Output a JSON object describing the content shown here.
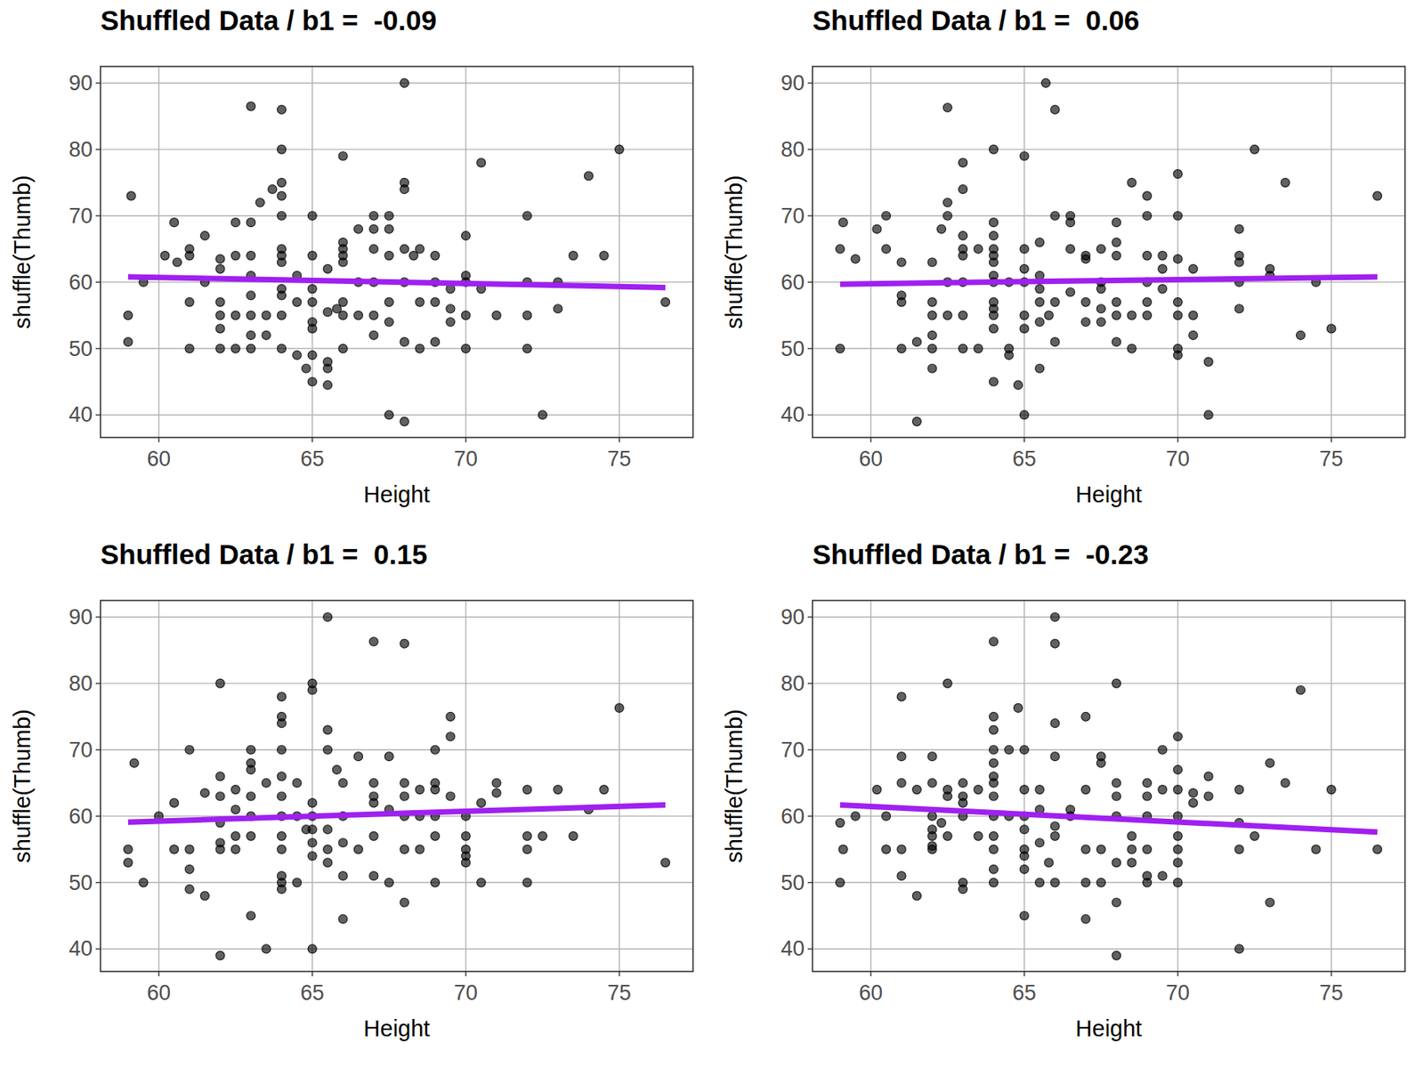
{
  "chart_data": [
    {
      "type": "scatter",
      "title": "Shuffled Data / b1 =  -0.09",
      "x_label": "Height",
      "y_label": "shuffle(Thumb)",
      "xlim": [
        58.1,
        77.4
      ],
      "ylim": [
        36.6,
        92.5
      ],
      "xticks": [
        60,
        65,
        70,
        75
      ],
      "yticks": [
        40,
        50,
        60,
        70,
        80,
        90
      ],
      "grid": true,
      "series": [
        {
          "type": "scatter",
          "marker": "circle",
          "color": "#000000",
          "x": [
            59,
            59,
            59.1,
            59.5,
            60.2,
            60.5,
            60.6,
            61,
            61,
            61,
            61,
            61.5,
            61.5,
            62,
            62,
            62,
            62,
            62,
            62,
            62.5,
            62.5,
            62.5,
            62.5,
            63,
            63,
            63,
            63,
            63,
            63,
            63,
            63,
            63.3,
            63.5,
            63.5,
            63.7,
            64,
            64,
            64,
            64,
            64,
            64,
            64,
            64,
            64,
            64,
            64,
            64,
            64.5,
            64.5,
            64.5,
            64.8,
            65,
            65,
            65,
            65,
            65,
            65,
            65,
            65,
            65.5,
            65.5,
            65.5,
            65.5,
            65.5,
            65.8,
            66,
            66,
            66,
            66,
            66,
            66,
            66,
            66,
            66.5,
            66.5,
            66.5,
            67,
            67,
            67,
            67,
            67,
            67,
            67.5,
            67.5,
            67.5,
            67.5,
            67.5,
            67.5,
            68,
            68,
            68,
            68,
            68,
            68,
            68,
            68.3,
            68.5,
            68.5,
            68.5,
            69,
            69,
            69,
            69,
            69.5,
            69.5,
            69.5,
            70,
            70,
            70,
            70,
            70,
            70.5,
            70.5,
            71,
            72,
            72,
            72,
            72,
            72.5,
            73,
            73,
            73.5,
            74,
            74.5,
            75,
            76.5
          ],
          "values": [
            55,
            51,
            73,
            60,
            64,
            69,
            63,
            65,
            64,
            57,
            50,
            67,
            60,
            63.5,
            62,
            57,
            55,
            53,
            50,
            69,
            64,
            55,
            50,
            86.5,
            69,
            64,
            61,
            58,
            55,
            52,
            50,
            72,
            55,
            52,
            74,
            86,
            80,
            75,
            73,
            70,
            65,
            64,
            63,
            59,
            58,
            55,
            50,
            61,
            57,
            49,
            47,
            70,
            64,
            59,
            57,
            54,
            53,
            49,
            45,
            62,
            55.5,
            48,
            47,
            44.5,
            56,
            79,
            66,
            65,
            64,
            63,
            57,
            55,
            50,
            68,
            60,
            55,
            70,
            68,
            65,
            60,
            55,
            52,
            70,
            68,
            64,
            57,
            54,
            40,
            90,
            75,
            74,
            65,
            60,
            51,
            39,
            64,
            65,
            57,
            50,
            64,
            60,
            57,
            51,
            59,
            56,
            54,
            67,
            61,
            60,
            55,
            50,
            78,
            59,
            55,
            70,
            60,
            55,
            50,
            40,
            60,
            56,
            64,
            76,
            64,
            80,
            57
          ]
        },
        {
          "type": "line",
          "line_style": "solid",
          "color": "#a020f0",
          "x": [
            59,
            76.5
          ],
          "values": [
            60.8,
            59.2
          ]
        }
      ]
    },
    {
      "type": "scatter",
      "title": "Shuffled Data / b1 =  0.06",
      "x_label": "Height",
      "y_label": "shuffle(Thumb)",
      "xlim": [
        58.1,
        77.4
      ],
      "ylim": [
        36.6,
        92.5
      ],
      "xticks": [
        60,
        65,
        70,
        75
      ],
      "yticks": [
        40,
        50,
        60,
        70,
        80,
        90
      ],
      "grid": true,
      "series": [
        {
          "type": "scatter",
          "marker": "circle",
          "color": "#000000",
          "x": [
            59,
            59,
            59.1,
            59.5,
            60.2,
            60.5,
            60.5,
            61,
            61,
            61,
            61,
            61.5,
            61.5,
            62,
            62,
            62,
            62,
            62,
            62,
            62.3,
            62.5,
            62.5,
            62.5,
            62.5,
            62.5,
            63,
            63,
            63,
            63,
            63,
            63,
            63,
            63,
            63.5,
            63.5,
            64,
            64,
            64,
            64,
            64,
            64,
            64,
            64,
            64,
            64,
            64,
            64,
            64,
            64.5,
            64.5,
            64.5,
            64.8,
            65,
            65,
            65,
            65,
            65,
            65,
            65,
            65.5,
            65.5,
            65.5,
            65.5,
            65.5,
            65.5,
            65.7,
            65.8,
            66,
            66,
            66,
            66,
            66.5,
            66.5,
            66.5,
            66.5,
            67,
            67,
            67,
            67,
            67.5,
            67.5,
            67.5,
            67.5,
            67.5,
            68,
            68,
            68,
            68,
            68,
            68,
            68.5,
            68.5,
            68.5,
            69,
            69,
            69,
            69,
            69,
            69,
            69.5,
            69.5,
            69.5,
            70,
            70,
            70,
            70,
            70,
            70,
            70,
            70.5,
            70.5,
            70.5,
            71,
            71,
            72,
            72,
            72,
            72,
            72,
            72.5,
            73,
            73,
            73.5,
            74,
            74.5,
            75,
            76.5
          ],
          "values": [
            65,
            50,
            69,
            63.5,
            68,
            70,
            65,
            63,
            58,
            57,
            50,
            51,
            39,
            63,
            57,
            55,
            52,
            50,
            47,
            68,
            86.3,
            72,
            70,
            60,
            55,
            78,
            74,
            67,
            65,
            64,
            60,
            55,
            50,
            65,
            50,
            80,
            69,
            67,
            65,
            64,
            63,
            61,
            60,
            57,
            56,
            55,
            53,
            45,
            60,
            50,
            49,
            44.5,
            79,
            65,
            62,
            60,
            55,
            53,
            40,
            66,
            61,
            59,
            57,
            54,
            47,
            90,
            55,
            86,
            70,
            57,
            51,
            70,
            69,
            65,
            58.5,
            64,
            63.5,
            57,
            54,
            65,
            60,
            59,
            56,
            54,
            69,
            66,
            64,
            57,
            55,
            51,
            75,
            55,
            50,
            73,
            70,
            64,
            60,
            57,
            55,
            64,
            62,
            59,
            76.3,
            70,
            63.5,
            57,
            55,
            50,
            49,
            62,
            55,
            52,
            48,
            40,
            68,
            64,
            63,
            60,
            56,
            80,
            62,
            61,
            75,
            52,
            60,
            53,
            73
          ]
        },
        {
          "type": "line",
          "line_style": "solid",
          "color": "#a020f0",
          "x": [
            59,
            76.5
          ],
          "values": [
            59.7,
            60.8
          ]
        }
      ]
    },
    {
      "type": "scatter",
      "title": "Shuffled Data / b1 =  0.15",
      "x_label": "Height",
      "y_label": "shuffle(Thumb)",
      "xlim": [
        58.1,
        77.4
      ],
      "ylim": [
        36.6,
        92.5
      ],
      "xticks": [
        60,
        65,
        70,
        75
      ],
      "yticks": [
        40,
        50,
        60,
        70,
        80,
        90
      ],
      "grid": true,
      "series": [
        {
          "type": "scatter",
          "marker": "circle",
          "color": "#000000",
          "x": [
            59,
            59,
            59.2,
            59.5,
            60,
            60.5,
            60.5,
            61,
            61,
            61,
            61,
            61.5,
            61.5,
            62,
            62,
            62,
            62,
            62,
            62,
            62,
            62.5,
            62.5,
            62.5,
            62.5,
            63,
            63,
            63,
            63,
            63,
            63,
            63,
            63.5,
            63.5,
            64,
            64,
            64,
            64,
            64,
            64,
            64,
            64,
            64,
            64,
            64,
            64,
            64.5,
            64.5,
            64.5,
            64.8,
            65,
            65,
            65,
            65,
            65,
            65,
            65,
            65,
            65.5,
            65.5,
            65.5,
            65.5,
            65.5,
            65.5,
            65.8,
            66,
            66,
            66,
            66,
            66,
            66.5,
            66.5,
            67,
            67,
            67,
            67,
            67,
            67,
            67.5,
            67.5,
            67.5,
            68,
            68,
            68,
            68,
            68,
            68,
            68.5,
            68.5,
            68.5,
            69,
            69,
            69,
            69,
            69,
            69,
            69.5,
            69.5,
            69.5,
            70,
            70,
            70,
            70,
            70,
            70.5,
            70.5,
            71,
            71,
            72,
            72,
            72,
            72,
            72.5,
            73,
            73.5,
            74,
            74.5,
            75,
            76.5
          ],
          "values": [
            55,
            53,
            68,
            50,
            60,
            62,
            55,
            70,
            55,
            52,
            49,
            48,
            63.5,
            80,
            66,
            63,
            59,
            56,
            55,
            39,
            64,
            61,
            57,
            55,
            70,
            68,
            67,
            63,
            60,
            57,
            45,
            65,
            40,
            78,
            75,
            74,
            70,
            66,
            63,
            60,
            57,
            55,
            51,
            50,
            49,
            65,
            60,
            50,
            58,
            80,
            79,
            62,
            60,
            58,
            56,
            54,
            40,
            90,
            73,
            70,
            58,
            55,
            53,
            67,
            65,
            60,
            56,
            51,
            44.5,
            69,
            55,
            86.3,
            65,
            63,
            62,
            57,
            51,
            69,
            61,
            50,
            86,
            65,
            63,
            60,
            55,
            47,
            64,
            60,
            55,
            70,
            65,
            64,
            60,
            57,
            50,
            75,
            72,
            63,
            60,
            57,
            55,
            54,
            53,
            62,
            50,
            65,
            63.5,
            64,
            57,
            55,
            50,
            57,
            64,
            57,
            61,
            64,
            76.3,
            53
          ]
        },
        {
          "type": "line",
          "line_style": "solid",
          "color": "#a020f0",
          "x": [
            59,
            76.5
          ],
          "values": [
            59.1,
            61.7
          ]
        }
      ]
    },
    {
      "type": "scatter",
      "title": "Shuffled Data / b1 =  -0.23",
      "x_label": "Height",
      "y_label": "shuffle(Thumb)",
      "xlim": [
        58.1,
        77.4
      ],
      "ylim": [
        36.6,
        92.5
      ],
      "xticks": [
        60,
        65,
        70,
        75
      ],
      "yticks": [
        40,
        50,
        60,
        70,
        80,
        90
      ],
      "grid": true,
      "series": [
        {
          "type": "scatter",
          "marker": "circle",
          "color": "#000000",
          "x": [
            59,
            59,
            59.1,
            59.5,
            60.2,
            60.5,
            60.5,
            61,
            61,
            61,
            61,
            61,
            61.5,
            61.5,
            62,
            62,
            62,
            62,
            62,
            62,
            62,
            62.3,
            62.5,
            62.5,
            62.5,
            62.5,
            63,
            63,
            63,
            63,
            63,
            63,
            63.5,
            63.5,
            64,
            64,
            64,
            64,
            64,
            64,
            64,
            64,
            64,
            64,
            64,
            64,
            64,
            64.5,
            64.5,
            64.8,
            65,
            65,
            65,
            65,
            65,
            65,
            65,
            65,
            65.5,
            65.5,
            65.5,
            65.5,
            65.8,
            66,
            66,
            66,
            66,
            66,
            66,
            66,
            66.5,
            66.5,
            67,
            67,
            67,
            67,
            67,
            67.5,
            67.5,
            67.5,
            67.5,
            68,
            68,
            68,
            68,
            68,
            68,
            68,
            68.5,
            68.5,
            68.5,
            69,
            69,
            69,
            69,
            69,
            69,
            69.5,
            69.5,
            69.5,
            70,
            70,
            70,
            70,
            70,
            70,
            70,
            70,
            70.5,
            70.5,
            71,
            71,
            72,
            72,
            72,
            72,
            72.5,
            73,
            73,
            73.5,
            74,
            74.5,
            75,
            76.5
          ],
          "values": [
            59,
            50,
            55,
            60,
            64,
            60,
            55,
            78,
            69,
            65,
            55,
            51,
            48,
            64,
            69,
            65,
            60,
            58,
            57,
            55.5,
            55,
            59,
            80,
            64,
            63,
            57,
            65,
            63,
            62,
            60,
            50,
            49,
            64,
            57,
            86.3,
            75,
            73,
            70,
            68,
            66,
            65,
            63,
            60,
            57,
            55,
            52,
            50,
            70,
            60,
            76.3,
            70,
            64,
            60,
            58,
            55,
            54,
            52,
            45,
            64,
            61,
            56,
            50,
            53,
            90,
            86,
            74,
            69,
            58.5,
            57,
            50,
            61,
            60,
            75,
            64,
            55,
            50,
            44.5,
            69,
            68,
            55,
            50,
            80,
            65,
            63,
            60,
            53,
            47,
            39,
            57,
            55,
            53,
            65,
            63,
            60,
            55,
            51,
            50,
            70,
            64,
            51,
            72,
            67,
            64,
            60,
            57,
            55,
            53,
            50,
            63.5,
            62,
            66,
            63,
            64,
            59,
            55,
            40,
            57,
            68,
            47,
            65,
            79,
            55,
            64,
            55
          ]
        },
        {
          "type": "line",
          "line_style": "solid",
          "color": "#a020f0",
          "x": [
            59,
            76.5
          ],
          "values": [
            61.7,
            57.6
          ]
        }
      ]
    }
  ]
}
